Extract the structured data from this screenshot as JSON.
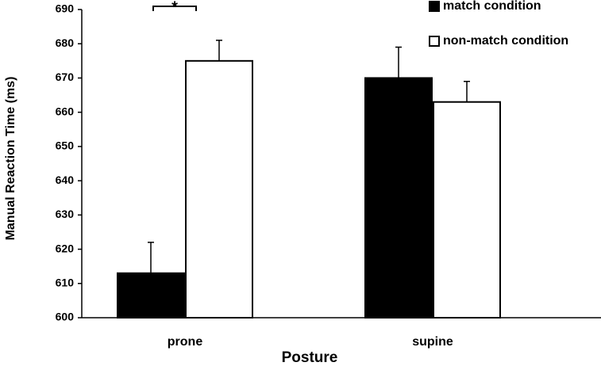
{
  "chart_data": {
    "type": "bar",
    "y_label": "Manual Reaction Time (ms)",
    "x_label": "Posture",
    "annotation": "*",
    "categories": [
      "prone",
      "supine"
    ],
    "series": [
      {
        "name": "match condition",
        "color": "#000000",
        "values": [
          613,
          670
        ],
        "errors": [
          9,
          9
        ]
      },
      {
        "name": "non-match condition",
        "color": "#ffffff",
        "values": [
          675,
          663
        ],
        "errors": [
          6,
          6
        ]
      }
    ],
    "ylim": [
      600,
      690
    ],
    "yticks": [
      600,
      610,
      620,
      630,
      640,
      650,
      660,
      670,
      680,
      690
    ]
  }
}
